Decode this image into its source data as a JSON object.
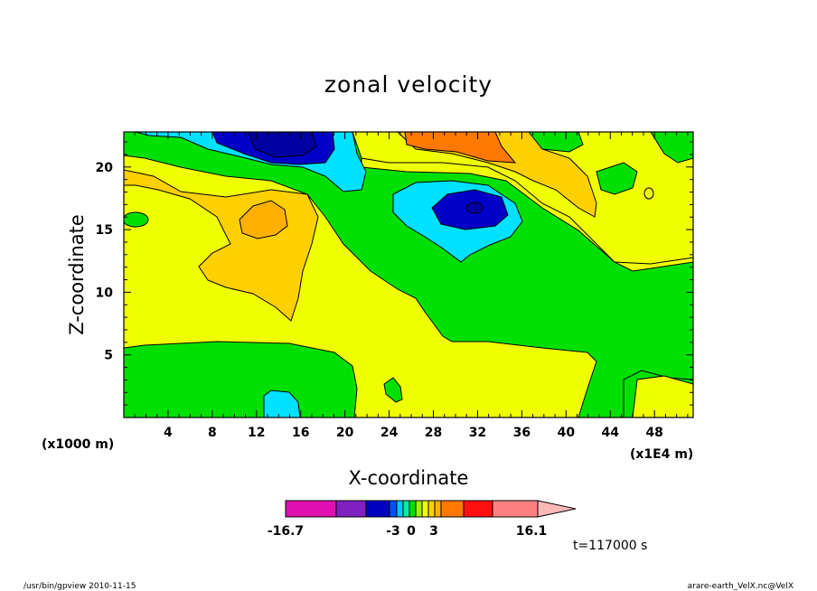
{
  "chart_data": {
    "type": "heatmap",
    "title": "zonal velocity",
    "xlabel": "X-coordinate",
    "ylabel": "Z-coordinate",
    "x_unit_left": "(x1000 m)",
    "x_unit_right": "(x1E4 m)",
    "xlim": [
      0,
      51.5
    ],
    "ylim": [
      0,
      22.8
    ],
    "x_ticks": [
      4,
      8,
      12,
      16,
      20,
      24,
      28,
      32,
      36,
      40,
      44,
      48
    ],
    "y_ticks": [
      5,
      10,
      15,
      20
    ],
    "time_label": "t=117000 s",
    "colorbar": {
      "tick_labels": [
        "-16.7",
        "-3",
        "0",
        "3",
        "16.1"
      ],
      "colors": [
        "#e010b0",
        "#8020c0",
        "#0000c0",
        "#0050ff",
        "#00c8ff",
        "#00f0a0",
        "#00e000",
        "#a0f000",
        "#f0ff00",
        "#ffd000",
        "#ffb000",
        "#ff7800",
        "#ff1010",
        "#ff8080",
        "#ffb8b8"
      ]
    },
    "regions": [
      {
        "level": "low",
        "description": "strong negative core near top",
        "center_x": 14,
        "center_z": 21.5
      },
      {
        "level": "low",
        "description": "negative core mid-upper",
        "center_x": 31,
        "center_z": 16.8
      },
      {
        "level": "high",
        "description": "positive core near top",
        "center_x": 29,
        "center_z": 21.5
      },
      {
        "level": "high",
        "description": "positive core left",
        "center_x": 13.5,
        "center_z": 16
      }
    ]
  },
  "footer": {
    "left": "/usr/bin/gpview   2010-11-15",
    "right": "arare-earth_VelX.nc@VelX"
  }
}
